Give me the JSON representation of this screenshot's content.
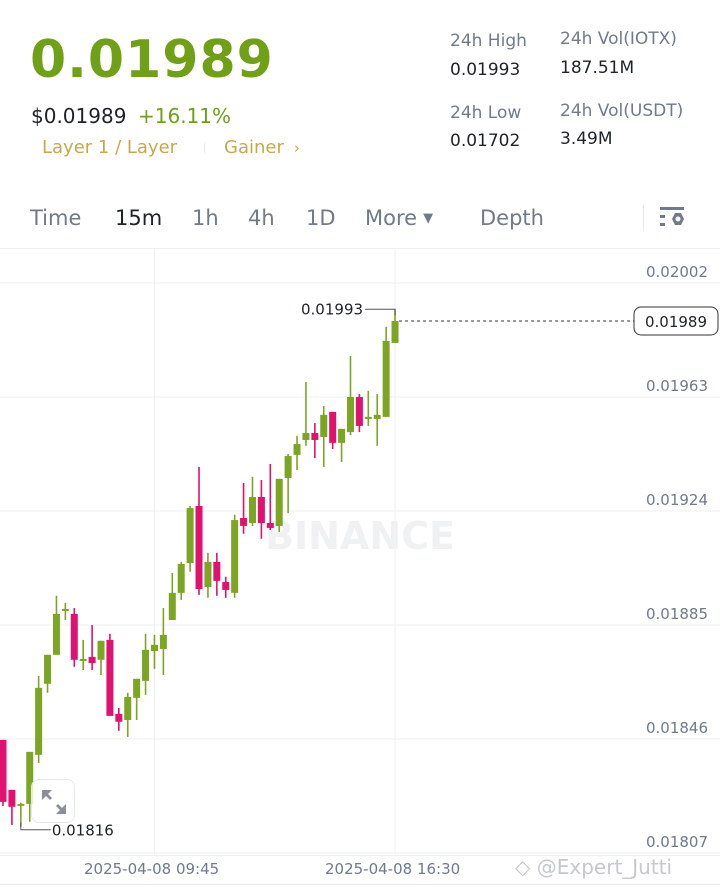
{
  "header": {
    "last_price": "0.01989",
    "usd_price": "$0.01989",
    "change": "+16.11%",
    "tag_category": "Layer 1 / Layer",
    "tag_gainer": "Gainer"
  },
  "stats": {
    "high_label": "24h High",
    "high_value": "0.01993",
    "vol_base_label": "24h Vol(IOTX)",
    "vol_base_value": "187.51M",
    "low_label": "24h Low",
    "low_value": "0.01702",
    "vol_quote_label": "24h Vol(USDT)",
    "vol_quote_value": "3.49M"
  },
  "tabs": [
    {
      "label": "Time"
    },
    {
      "label": "15m",
      "active": true
    },
    {
      "label": "1h"
    },
    {
      "label": "4h"
    },
    {
      "label": "1D"
    },
    {
      "label": "More"
    },
    {
      "label": "Depth"
    }
  ],
  "colors": {
    "up": "#7ba522",
    "down": "#e0126f",
    "accent": "#6fa016",
    "tag": "#c9a84b"
  },
  "chart_data": {
    "type": "candlestick",
    "interval": "15m",
    "y_ticks": [
      "0.02002",
      "0.01963",
      "0.01924",
      "0.01885",
      "0.01846",
      "0.01807"
    ],
    "x_ticks": [
      "2025-04-08 09:45",
      "2025-04-08 16:30"
    ],
    "high_marker": "0.01993",
    "low_marker": "0.01816",
    "current_price": "0.01989",
    "watermark": "BINANCE",
    "ohlc": [
      [
        0.018457,
        0.018457,
        0.018231,
        0.018245
      ],
      [
        0.018286,
        0.018286,
        0.018166,
        0.018228
      ],
      [
        0.018235,
        0.018242,
        0.01816,
        0.018238
      ],
      [
        0.018238,
        0.018416,
        0.018177,
        0.018416
      ],
      [
        0.018406,
        0.018676,
        0.018378,
        0.018635
      ],
      [
        0.018649,
        0.018748,
        0.018618,
        0.018748
      ],
      [
        0.018748,
        0.01895,
        0.018748,
        0.018888
      ],
      [
        0.018902,
        0.018926,
        0.018867,
        0.018905
      ],
      [
        0.018888,
        0.018908,
        0.018707,
        0.018731
      ],
      [
        0.018727,
        0.018799,
        0.018696,
        0.018734
      ],
      [
        0.018741,
        0.01885,
        0.018696,
        0.01872
      ],
      [
        0.018731,
        0.018796,
        0.018679,
        0.018796
      ],
      [
        0.018799,
        0.01882,
        0.018539,
        0.018539
      ],
      [
        0.018546,
        0.018566,
        0.018488,
        0.018519
      ],
      [
        0.018525,
        0.018618,
        0.018467,
        0.018604
      ],
      [
        0.018601,
        0.018666,
        0.018525,
        0.018666
      ],
      [
        0.018659,
        0.01882,
        0.018611,
        0.018765
      ],
      [
        0.018761,
        0.018816,
        0.0187,
        0.018782
      ],
      [
        0.018768,
        0.018908,
        0.018679,
        0.018816
      ],
      [
        0.018867,
        0.019028,
        0.018867,
        0.01896
      ],
      [
        0.01896,
        0.019066,
        0.018936,
        0.019059
      ],
      [
        0.019062,
        0.019257,
        0.019032,
        0.01925
      ],
      [
        0.019257,
        0.019391,
        0.018953,
        0.018973
      ],
      [
        0.01898,
        0.019097,
        0.018943,
        0.019066
      ],
      [
        0.019066,
        0.019097,
        0.01895,
        0.019001
      ],
      [
        0.018997,
        0.019015,
        0.018943,
        0.01897
      ],
      [
        0.01896,
        0.019227,
        0.018943,
        0.019209
      ],
      [
        0.019216,
        0.019336,
        0.019162,
        0.019189
      ],
      [
        0.019199,
        0.019357,
        0.019189,
        0.019288
      ],
      [
        0.019288,
        0.019346,
        0.019145,
        0.019199
      ],
      [
        0.019199,
        0.019401,
        0.019175,
        0.019182
      ],
      [
        0.019189,
        0.01935,
        0.019168,
        0.01935
      ],
      [
        0.019353,
        0.019435,
        0.019233,
        0.019428
      ],
      [
        0.019432,
        0.019497,
        0.01938,
        0.019469
      ],
      [
        0.019483,
        0.019681,
        0.019463,
        0.019507
      ],
      [
        0.019507,
        0.019541,
        0.019421,
        0.019483
      ],
      [
        0.019493,
        0.019599,
        0.019391,
        0.019569
      ],
      [
        0.019579,
        0.019579,
        0.019452,
        0.019473
      ],
      [
        0.019473,
        0.019521,
        0.019408,
        0.019521
      ],
      [
        0.01951,
        0.01977,
        0.0195,
        0.01963
      ],
      [
        0.01963,
        0.01964,
        0.01951,
        0.019531
      ],
      [
        0.019555,
        0.019651,
        0.019531,
        0.019562
      ],
      [
        0.019555,
        0.01964,
        0.019463,
        0.019569
      ],
      [
        0.019562,
        0.01987,
        0.019562,
        0.019822
      ],
      [
        0.019815,
        0.01993,
        0.019815,
        0.01989
      ]
    ]
  },
  "credit": "@Expert_Jutti"
}
